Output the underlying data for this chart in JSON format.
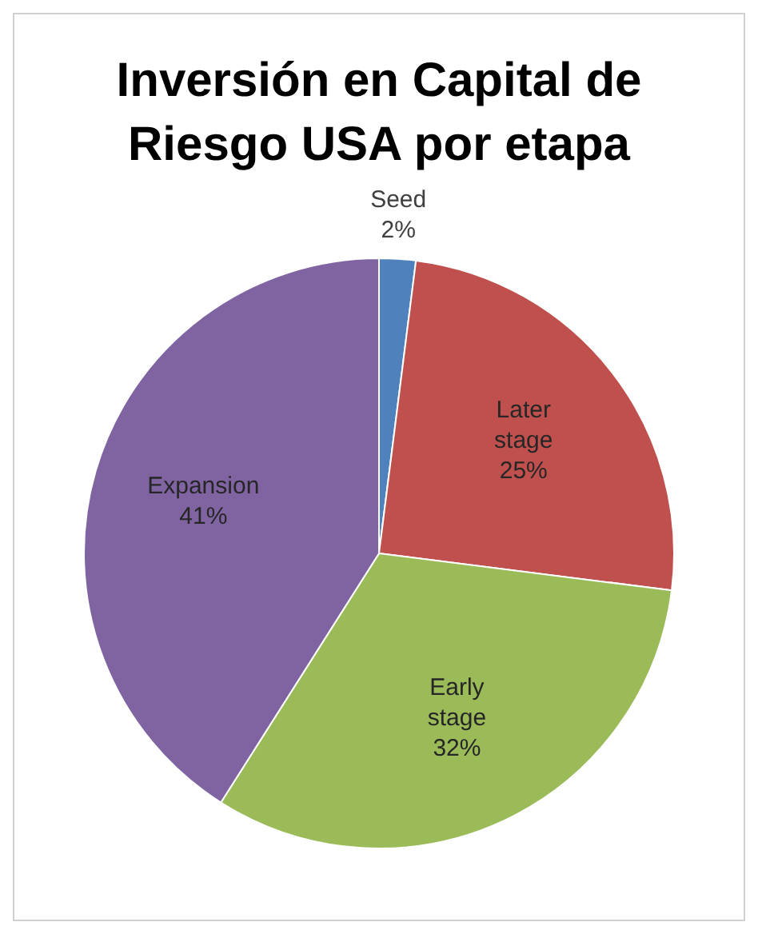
{
  "chart_data": {
    "type": "pie",
    "title": "Inversión en Capital de Riesgo USA por etapa",
    "categories": [
      "Seed",
      "Later stage",
      "Early stage",
      "Expansion"
    ],
    "values": [
      2,
      25,
      32,
      41
    ],
    "colors": [
      "#4f81bd",
      "#c0504d",
      "#9bbb59",
      "#8064a2"
    ],
    "value_labels": [
      "2%",
      "25%",
      "32%",
      "41%"
    ],
    "legend": false
  }
}
